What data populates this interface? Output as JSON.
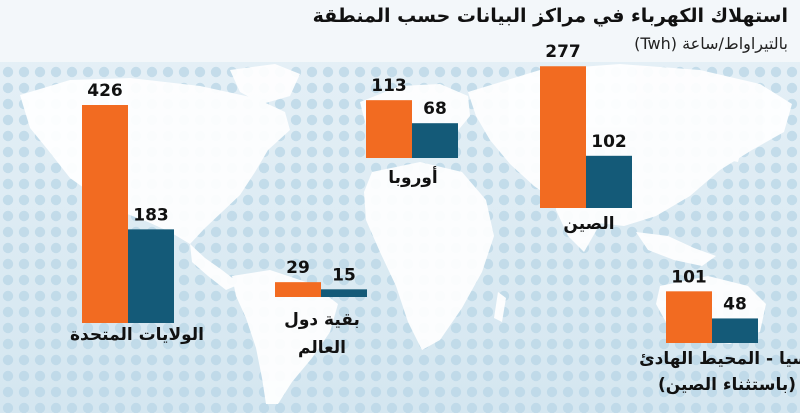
{
  "chart_data": {
    "type": "bar",
    "title": "استهلاك الكهرباء في مراكز البيانات حسب المنطقة",
    "subtitle": "بالتيراواط/ساعة (Twh)",
    "colors": {
      "orange": "#F26B21",
      "teal": "#145A78"
    },
    "regions": [
      {
        "label": [
          "الولايات المتحدة"
        ],
        "values": [
          426,
          183
        ]
      },
      {
        "label": [
          "بقية دول",
          "العالم"
        ],
        "values": [
          29,
          15
        ]
      },
      {
        "label": [
          "أوروبا"
        ],
        "values": [
          113,
          68
        ]
      },
      {
        "label": [
          "الصين"
        ],
        "values": [
          277,
          102
        ]
      },
      {
        "label": [
          "آسيا - المحيط الهادئ",
          "(باستثناء الصين)"
        ],
        "values": [
          101,
          48
        ]
      }
    ]
  }
}
